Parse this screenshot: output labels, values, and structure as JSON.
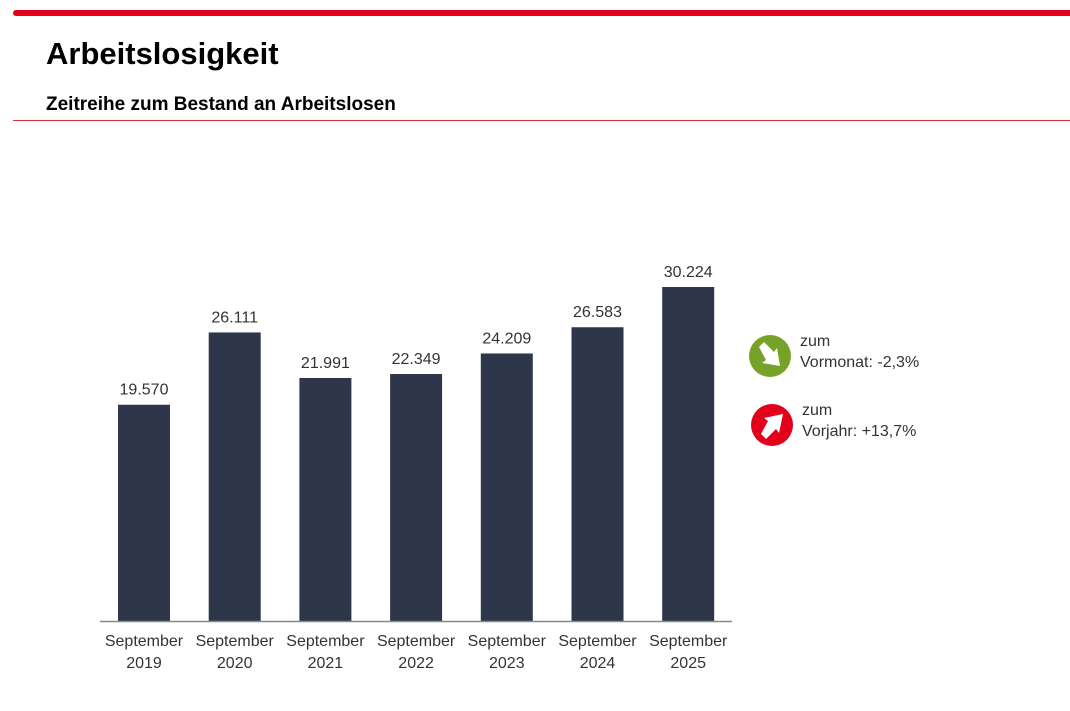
{
  "header": {
    "title": "Arbeitslosigkeit",
    "subtitle": "Zeitreihe zum Bestand an Arbeitslosen",
    "accent_color": "#e2001a"
  },
  "chart_data": {
    "type": "bar",
    "title": "",
    "xlabel": "",
    "ylabel": "",
    "categories": [
      [
        "September",
        "2019"
      ],
      [
        "September",
        "2020"
      ],
      [
        "September",
        "2021"
      ],
      [
        "September",
        "2022"
      ],
      [
        "September",
        "2023"
      ],
      [
        "September",
        "2024"
      ],
      [
        "September",
        "2025"
      ]
    ],
    "values": [
      19570,
      26111,
      21991,
      22349,
      24209,
      26583,
      30224
    ],
    "labels": [
      "19.570",
      "26.111",
      "21.991",
      "22.349",
      "24.209",
      "26.583",
      "30.224"
    ],
    "ylim": [
      0,
      30224
    ],
    "grid": false,
    "bar_color": "#2e3649"
  },
  "indicators": [
    {
      "line1": "zum",
      "line2": "Vormonat: -2,3%",
      "direction": "down",
      "icon": "arrow-down-right-icon",
      "color": "#77a22a"
    },
    {
      "line1": "zum",
      "line2": "Vorjahr: +13,7%",
      "direction": "up",
      "icon": "arrow-up-right-icon",
      "color": "#e2001a"
    }
  ]
}
